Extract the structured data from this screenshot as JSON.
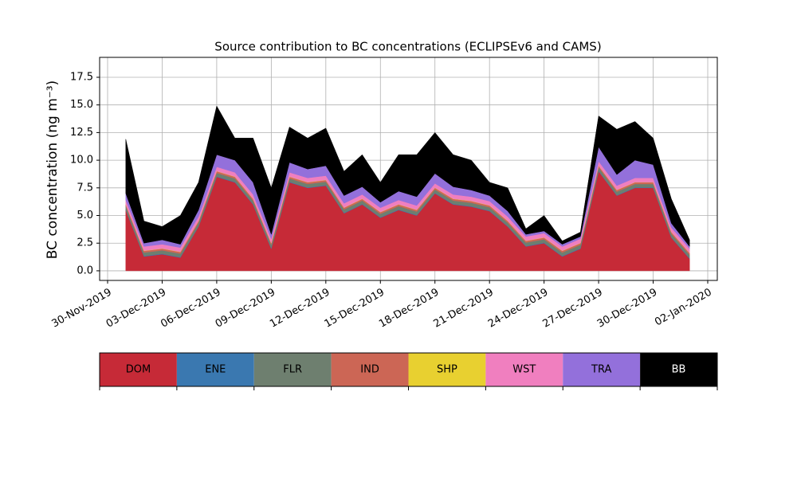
{
  "chart_data": {
    "type": "stacked_area",
    "title": "Source contribution to BC concentrations (ECLIPSEv6 and CAMS)",
    "y_label": "BC concentration (ng m⁻³)",
    "x": [
      "01-Dec-2019",
      "02-Dec-2019",
      "03-Dec-2019",
      "04-Dec-2019",
      "05-Dec-2019",
      "06-Dec-2019",
      "07-Dec-2019",
      "08-Dec-2019",
      "09-Dec-2019",
      "10-Dec-2019",
      "11-Dec-2019",
      "12-Dec-2019",
      "13-Dec-2019",
      "14-Dec-2019",
      "15-Dec-2019",
      "16-Dec-2019",
      "17-Dec-2019",
      "18-Dec-2019",
      "19-Dec-2019",
      "20-Dec-2019",
      "21-Dec-2019",
      "22-Dec-2019",
      "23-Dec-2019",
      "24-Dec-2019",
      "25-Dec-2019",
      "26-Dec-2019",
      "27-Dec-2019",
      "28-Dec-2019",
      "29-Dec-2019",
      "30-Dec-2019",
      "31-Dec-2019",
      "01-Jan-2020"
    ],
    "series": [
      {
        "name": "DOM",
        "color": "#c62a37",
        "values": [
          5.5,
          1.3,
          1.5,
          1.2,
          4,
          8.5,
          8,
          6,
          2,
          8,
          7.5,
          7.7,
          5.2,
          6,
          4.8,
          5.5,
          5,
          7,
          6,
          5.8,
          5.4,
          4,
          2.2,
          2.5,
          1.3,
          2,
          9,
          6.8,
          7.5,
          7.5,
          3,
          1.1
        ]
      },
      {
        "name": "ENE",
        "color": "#3a78b0",
        "values": [
          0.05,
          0.05,
          0.05,
          0.05,
          0.05,
          0.05,
          0.05,
          0.05,
          0.05,
          0.05,
          0.05,
          0.05,
          0.05,
          0.05,
          0.05,
          0.05,
          0.05,
          0.05,
          0.05,
          0.05,
          0.05,
          0.05,
          0.05,
          0.05,
          0.05,
          0.05,
          0.05,
          0.05,
          0.05,
          0.05,
          0.05,
          0.05
        ]
      },
      {
        "name": "FLR",
        "color": "#6e7f6f",
        "values": [
          0.3,
          0.3,
          0.3,
          0.3,
          0.3,
          0.3,
          0.3,
          0.3,
          0.3,
          0.3,
          0.3,
          0.3,
          0.3,
          0.3,
          0.3,
          0.3,
          0.3,
          0.3,
          0.3,
          0.3,
          0.3,
          0.3,
          0.3,
          0.3,
          0.3,
          0.3,
          0.3,
          0.3,
          0.3,
          0.3,
          0.3,
          0.3
        ]
      },
      {
        "name": "IND",
        "color": "#cc6655",
        "values": [
          0.15,
          0.15,
          0.15,
          0.15,
          0.15,
          0.15,
          0.15,
          0.15,
          0.15,
          0.15,
          0.15,
          0.15,
          0.15,
          0.15,
          0.15,
          0.15,
          0.15,
          0.15,
          0.15,
          0.15,
          0.15,
          0.15,
          0.15,
          0.15,
          0.15,
          0.15,
          0.15,
          0.15,
          0.15,
          0.15,
          0.15,
          0.15
        ]
      },
      {
        "name": "SHP",
        "color": "#e8d030",
        "values": [
          0.02,
          0.02,
          0.02,
          0.02,
          0.02,
          0.02,
          0.02,
          0.02,
          0.02,
          0.02,
          0.02,
          0.02,
          0.02,
          0.02,
          0.02,
          0.02,
          0.02,
          0.02,
          0.02,
          0.02,
          0.02,
          0.02,
          0.02,
          0.02,
          0.02,
          0.02,
          0.02,
          0.02,
          0.02,
          0.02,
          0.02,
          0.02
        ]
      },
      {
        "name": "WST",
        "color": "#f07fbf",
        "values": [
          0.38,
          0.38,
          0.38,
          0.38,
          0.38,
          0.38,
          0.38,
          0.38,
          0.38,
          0.38,
          0.38,
          0.38,
          0.38,
          0.38,
          0.38,
          0.38,
          0.38,
          0.38,
          0.38,
          0.38,
          0.38,
          0.38,
          0.38,
          0.38,
          0.38,
          0.38,
          0.38,
          0.38,
          0.38,
          0.38,
          0.38,
          0.38
        ]
      },
      {
        "name": "TRA",
        "color": "#9370db",
        "values": [
          0.6,
          0.3,
          0.4,
          0.3,
          0.6,
          1.1,
          1.1,
          1.1,
          0.4,
          0.9,
          0.8,
          0.9,
          0.7,
          0.7,
          0.5,
          0.8,
          0.8,
          0.9,
          0.7,
          0.6,
          0.5,
          0.5,
          0.2,
          0.2,
          0.2,
          0.2,
          1.3,
          1.0,
          1.6,
          1.2,
          0.4,
          0.2
        ]
      },
      {
        "name": "BB",
        "color": "#000000",
        "values": [
          4.9,
          2.0,
          1.2,
          2.6,
          2.5,
          4.4,
          2,
          4,
          4.2,
          3.2,
          2.8,
          3.4,
          2.2,
          2.9,
          1.8,
          3.3,
          3.8,
          3.7,
          2.9,
          2.7,
          1.2,
          2.1,
          0.5,
          1.4,
          0.3,
          0.4,
          2.8,
          4.1,
          3.5,
          2.4,
          2.2,
          0.6
        ]
      }
    ],
    "xlim": [
      "30-Nov-2019",
      "02-Jan-2020"
    ],
    "xticks": [
      "30-Nov-2019",
      "03-Dec-2019",
      "06-Dec-2019",
      "09-Dec-2019",
      "12-Dec-2019",
      "15-Dec-2019",
      "18-Dec-2019",
      "21-Dec-2019",
      "24-Dec-2019",
      "27-Dec-2019",
      "30-Dec-2019",
      "02-Jan-2020"
    ],
    "ylim": [
      -0.87,
      19.3
    ],
    "yticks": [
      {
        "value": 0,
        "label": "0.0"
      },
      2.5,
      {
        "value": 5,
        "label": "5.0"
      },
      7.5,
      {
        "value": 10,
        "label": "10.0"
      },
      12.5,
      {
        "value": 15,
        "label": "15.0"
      },
      17.5
    ],
    "grid": true
  }
}
